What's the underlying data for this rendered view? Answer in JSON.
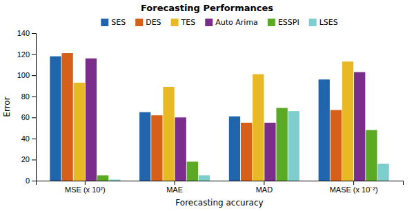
{
  "chart_data": {
    "type": "bar",
    "title": "Forecasting Performances",
    "xlabel": "Forecasting accuracy",
    "ylabel": "Error",
    "categories": [
      "MSE (x 10²)",
      "MAE",
      "MAD",
      "MASE (x 10⁻²)"
    ],
    "series": [
      {
        "name": "SES",
        "color": "#2166ac",
        "values": [
          118,
          65,
          61,
          96
        ]
      },
      {
        "name": "DES",
        "color": "#d6601a",
        "values": [
          121,
          62,
          55,
          67
        ]
      },
      {
        "name": "TES",
        "color": "#e8b825",
        "values": [
          93,
          89,
          101,
          113
        ]
      },
      {
        "name": "Auto Arima",
        "color": "#7b2d8b",
        "values": [
          116,
          60,
          55,
          103
        ]
      },
      {
        "name": "ESSPI",
        "color": "#5aaa25",
        "values": [
          5,
          18,
          69,
          48
        ]
      },
      {
        "name": "LSES",
        "color": "#7ecece",
        "values": [
          1,
          5,
          66,
          16
        ]
      }
    ],
    "ylim": [
      0,
      140
    ],
    "yticks": [
      0,
      20,
      40,
      60,
      80,
      100,
      120,
      140
    ],
    "grid": false,
    "legend": "top"
  }
}
